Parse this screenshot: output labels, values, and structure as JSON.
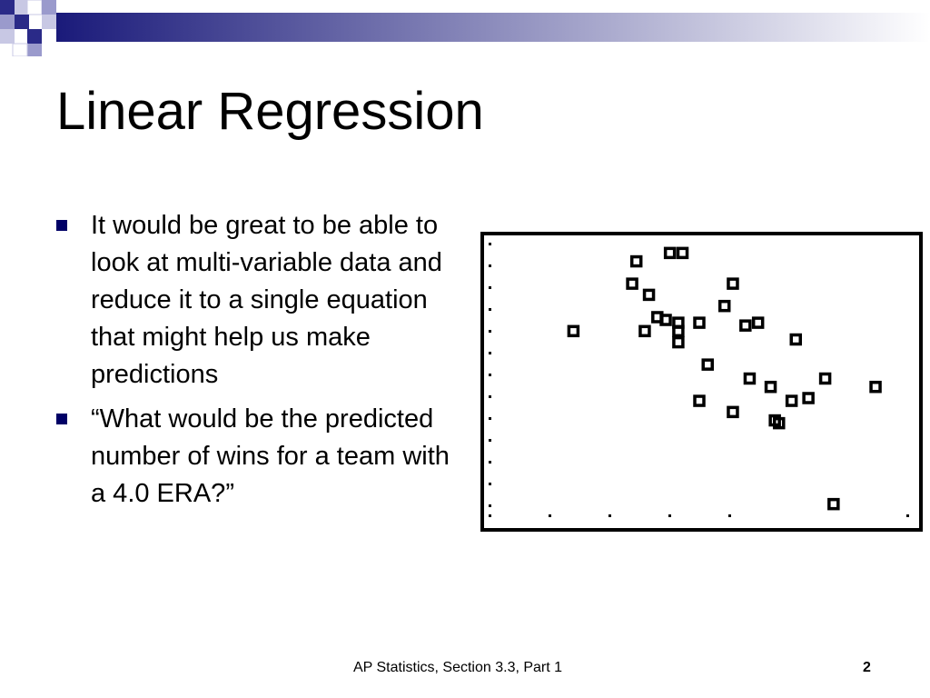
{
  "slide": {
    "title": "Linear Regression",
    "bullets": [
      "It would be great to be able to look at multi-variable data and reduce it to a single equation that might help us make predictions",
      "“What would be the predicted number of wins for a team with a 4.0 ERA?”"
    ],
    "footer": "AP Statistics, Section 3.3, Part 1",
    "page_number": "2"
  },
  "colors": {
    "bullet": "#000066",
    "band_dark": "#1a1a7a",
    "band_light": "#ffffff"
  },
  "chart_data": {
    "type": "scatter",
    "title": "",
    "xlabel": "",
    "ylabel": "",
    "xlim": [
      0,
      100
    ],
    "ylim": [
      0,
      100
    ],
    "grid": false,
    "points": [
      [
        20,
        67
      ],
      [
        35,
        92
      ],
      [
        34,
        84
      ],
      [
        38,
        80
      ],
      [
        43,
        95
      ],
      [
        46,
        95
      ],
      [
        58,
        84
      ],
      [
        56,
        76
      ],
      [
        40,
        72
      ],
      [
        42,
        71
      ],
      [
        45,
        70
      ],
      [
        45,
        67
      ],
      [
        37,
        67
      ],
      [
        45,
        63
      ],
      [
        50,
        70
      ],
      [
        61,
        69
      ],
      [
        64,
        70
      ],
      [
        73,
        64
      ],
      [
        52,
        55
      ],
      [
        62,
        50
      ],
      [
        67,
        47
      ],
      [
        80,
        50
      ],
      [
        92,
        47
      ],
      [
        50,
        42
      ],
      [
        58,
        38
      ],
      [
        72,
        42
      ],
      [
        76,
        43
      ],
      [
        68,
        35
      ],
      [
        69,
        34
      ],
      [
        82,
        5
      ]
    ]
  }
}
